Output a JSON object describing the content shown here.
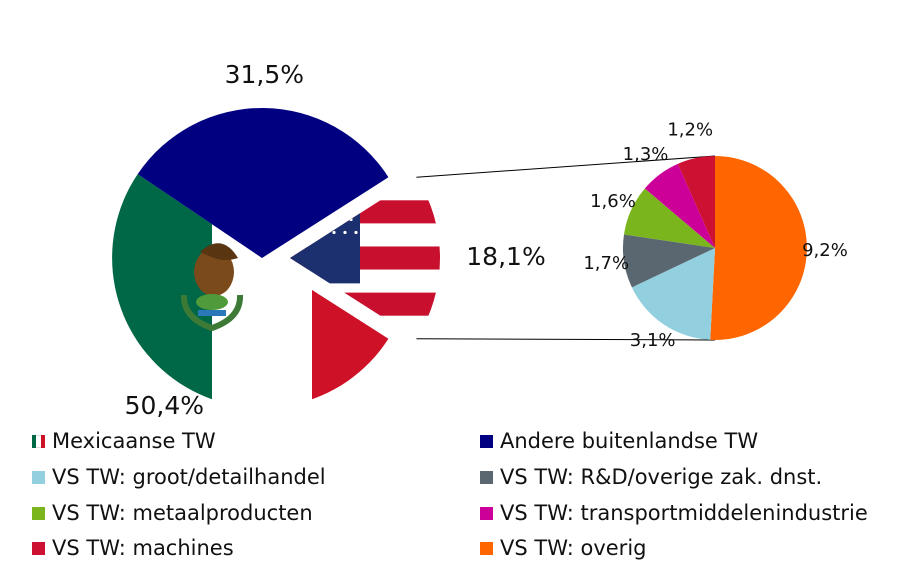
{
  "chart_data": [
    {
      "type": "pie",
      "slices": [
        {
          "name": "Mexicaanse TW",
          "value": 50.4,
          "label": "50,4%"
        },
        {
          "name": "Andere buitenlandse TW",
          "value": 31.5,
          "label": "31,5%"
        },
        {
          "name": "VS TW",
          "value": 18.1,
          "label": "18,1%"
        }
      ]
    },
    {
      "type": "pie",
      "slices": [
        {
          "name": "VS TW: overig",
          "value": 9.2,
          "label": "9,2%",
          "color": "#ff6600"
        },
        {
          "name": "VS TW: groot/detailhandel",
          "value": 3.1,
          "label": "3,1%",
          "color": "#92d0e0"
        },
        {
          "name": "VS TW: R&D/overige zak. dnst.",
          "value": 1.7,
          "label": "1,7%",
          "color": "#5b6770"
        },
        {
          "name": "VS TW: metaalproducten",
          "value": 1.6,
          "label": "1,6%",
          "color": "#7ab51d"
        },
        {
          "name": "VS TW: transportmiddelenindustrie",
          "value": 1.3,
          "label": "1,3%",
          "color": "#cc0099"
        },
        {
          "name": "VS TW: machines",
          "value": 1.2,
          "label": "1,2%",
          "color": "#cc1133"
        }
      ]
    }
  ],
  "colors": {
    "mexico_green": "#006847",
    "mexico_white": "#ffffff",
    "mexico_red": "#ce1126",
    "other_foreign": "#000080",
    "us_red": "#c8102e",
    "us_blue": "#1c2f6e"
  },
  "legend": [
    {
      "label": "Mexicaanse TW",
      "swatch": "mexico-flag"
    },
    {
      "label": "Andere buitenlandse TW",
      "color": "#000080"
    },
    {
      "label": "VS TW: groot/detailhandel",
      "color": "#92d0e0"
    },
    {
      "label": "VS TW: R&D/overige zak. dnst.",
      "color": "#5b6770"
    },
    {
      "label": "VS TW: metaalproducten",
      "color": "#7ab51d"
    },
    {
      "label": "VS TW: transportmiddelenindustrie",
      "color": "#cc0099"
    },
    {
      "label": "VS TW: machines",
      "color": "#cc1133"
    },
    {
      "label": "VS TW: overig",
      "color": "#ff6600"
    }
  ]
}
